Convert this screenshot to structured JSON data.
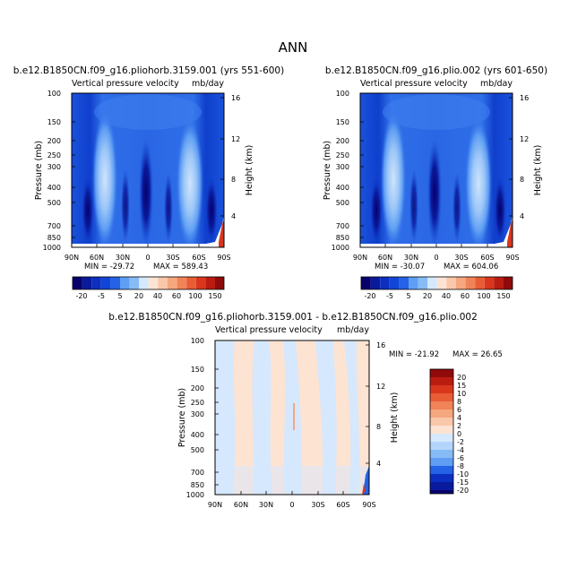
{
  "figure": {
    "title": "ANN"
  },
  "colors": {
    "blue_scale": [
      "#08006b",
      "#0a1a9c",
      "#0c2fbf",
      "#1046d8",
      "#2462e6",
      "#3f80ee",
      "#5f9ef3",
      "#86bbf6",
      "#b3d5fa",
      "#d5e8fd"
    ],
    "neutral": "#ffffff",
    "red_scale": [
      "#fde3d2",
      "#f9c7a9",
      "#f5a77e",
      "#f08357",
      "#e85c36",
      "#d8371e",
      "#bb1c12",
      "#8f0a0a"
    ],
    "frame": "#000000"
  },
  "chart_data": [
    {
      "type": "heatmap",
      "case": "b.e12.B1850CN.f09_g16.pliohorb.3159.001 (yrs 551-600)",
      "title_left": "Vertical pressure velocity",
      "title_right": "mb/day",
      "xlabel": "",
      "ylabel": "Pressure (mb)",
      "ylabel_right": "Height (km)",
      "x_ticks": [
        "90N",
        "60N",
        "30N",
        "0",
        "30S",
        "60S",
        "90S"
      ],
      "y_ticks": [
        "100",
        "150",
        "200",
        "250",
        "300",
        "400",
        "500",
        "700",
        "850",
        "1000"
      ],
      "y_ticks_right": [
        "16",
        "12",
        "8",
        "4"
      ],
      "ylim": [
        1000,
        100
      ],
      "xlim": [
        "90N",
        "90S"
      ],
      "min_label": "MIN = -29.72",
      "max_label": "MAX = 589.43",
      "min": -29.72,
      "max": 589.43,
      "colorbar": {
        "orientation": "horizontal",
        "levels": [
          -20,
          -15,
          -10,
          -5,
          0,
          5,
          10,
          20,
          30,
          40,
          50,
          60,
          80,
          100,
          120,
          150
        ],
        "labels": [
          "-20",
          "-5",
          "5",
          "20",
          "40",
          "60",
          "100",
          "150"
        ]
      }
    },
    {
      "type": "heatmap",
      "case": "b.e12.B1850CN.f09_g16.plio.002 (yrs 601-650)",
      "title_left": "Vertical pressure velocity",
      "title_right": "mb/day",
      "xlabel": "",
      "ylabel": "Pressure (mb)",
      "ylabel_right": "Height (km)",
      "x_ticks": [
        "90N",
        "60N",
        "30N",
        "0",
        "30S",
        "60S",
        "90S"
      ],
      "y_ticks": [
        "100",
        "150",
        "200",
        "250",
        "300",
        "400",
        "500",
        "700",
        "850",
        "1000"
      ],
      "y_ticks_right": [
        "16",
        "12",
        "8",
        "4"
      ],
      "ylim": [
        1000,
        100
      ],
      "xlim": [
        "90N",
        "90S"
      ],
      "min_label": "MIN = -30.07",
      "max_label": "MAX = 604.06",
      "min": -30.07,
      "max": 604.06,
      "colorbar": {
        "orientation": "horizontal",
        "levels": [
          -20,
          -15,
          -10,
          -5,
          0,
          5,
          10,
          20,
          30,
          40,
          50,
          60,
          80,
          100,
          120,
          150
        ],
        "labels": [
          "-20",
          "-5",
          "5",
          "20",
          "40",
          "60",
          "100",
          "150"
        ]
      }
    },
    {
      "type": "heatmap",
      "case": "b.e12.B1850CN.f09_g16.pliohorb.3159.001 - b.e12.B1850CN.f09_g16.plio.002",
      "title_left": "Vertical pressure velocity",
      "title_right": "mb/day",
      "xlabel": "",
      "ylabel": "Pressure (mb)",
      "ylabel_right": "Height (km)",
      "x_ticks": [
        "90N",
        "60N",
        "30N",
        "0",
        "30S",
        "60S",
        "90S"
      ],
      "y_ticks": [
        "100",
        "150",
        "200",
        "250",
        "300",
        "400",
        "500",
        "700",
        "850",
        "1000"
      ],
      "y_ticks_right": [
        "16",
        "12",
        "8",
        "4"
      ],
      "ylim": [
        1000,
        100
      ],
      "xlim": [
        "90N",
        "90S"
      ],
      "min_label": "MIN = -21.92",
      "max_label": "MAX = 26.65",
      "min": -21.92,
      "max": 26.65,
      "colorbar": {
        "orientation": "vertical",
        "levels": [
          -20,
          -15,
          -10,
          -8,
          -6,
          -4,
          -2,
          0,
          2,
          4,
          6,
          8,
          10,
          15,
          20
        ],
        "labels": [
          "20",
          "15",
          "10",
          "8",
          "6",
          "4",
          "2",
          "0",
          "-2",
          "-4",
          "-6",
          "-8",
          "-10",
          "-15",
          "-20"
        ]
      }
    }
  ]
}
